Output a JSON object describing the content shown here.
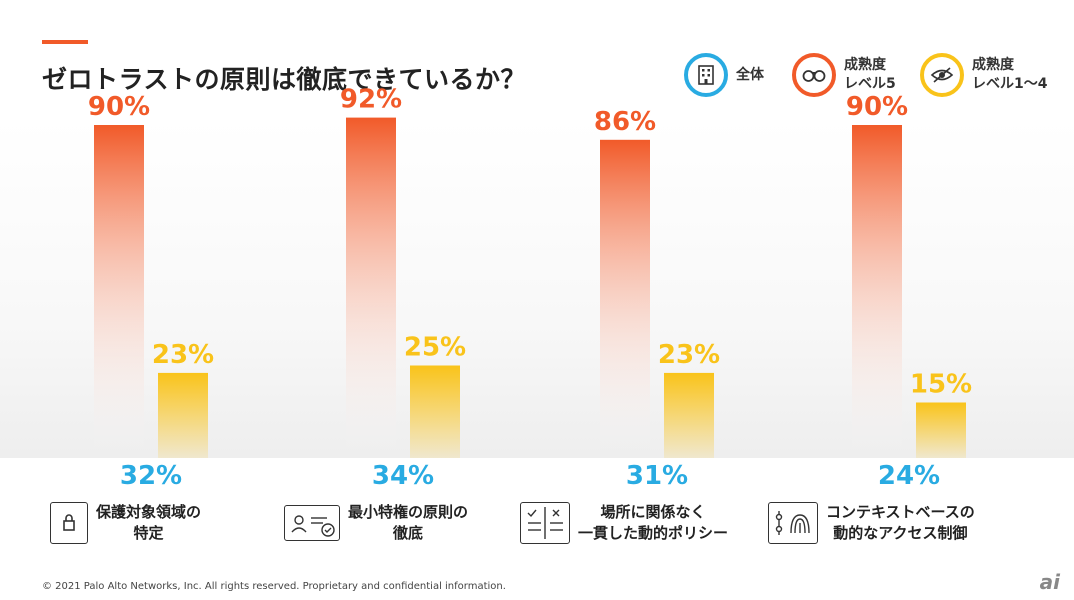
{
  "page": {
    "title": "ゼロトラストの原則は徹底できているか？",
    "footer": "© 2021 Palo Alto Networks, Inc. All rights reserved. Proprietary and confidential information.",
    "watermark": "ai"
  },
  "legend": [
    {
      "label": "全体",
      "color": "#29abe2",
      "icon": "building-icon"
    },
    {
      "label": "成熟度\nレベル5",
      "color": "#f15a29",
      "icon": "binoculars-icon"
    },
    {
      "label": "成熟度\nレベル1～4",
      "color": "#f9c31a",
      "icon": "eye-slash-icon"
    }
  ],
  "colors": {
    "overall": "#29abe2",
    "level5": "#f15a29",
    "level14": "#f9c31a"
  },
  "chart_data": {
    "type": "bar",
    "title": "ゼロトラストの原則は徹底できているか？",
    "unit": "%",
    "ylim": [
      0,
      100
    ],
    "categories": [
      "保護対象領域の\n特定",
      "最小特権の原則の\n徹底",
      "場所に関係なく\n一貫した動的ポリシー",
      "コンテキストベースの\n動的なアクセス制御"
    ],
    "category_icons": [
      "document-lock-icon",
      "id-card-check-icon",
      "checklist-icon",
      "fingerprint-icon"
    ],
    "series": [
      {
        "name": "全体",
        "values": [
          32,
          34,
          31,
          24
        ],
        "labels": [
          "32%",
          "34%",
          "31%",
          "24%"
        ]
      },
      {
        "name": "成熟度レベル5",
        "values": [
          90,
          92,
          86,
          90
        ],
        "labels": [
          "90%",
          "92%",
          "86%",
          "90%"
        ]
      },
      {
        "name": "成熟度レベル1～4",
        "values": [
          23,
          25,
          23,
          15
        ],
        "labels": [
          "23%",
          "25%",
          "23%",
          "15%"
        ]
      }
    ],
    "grid": false,
    "legend_position": "top-right"
  }
}
